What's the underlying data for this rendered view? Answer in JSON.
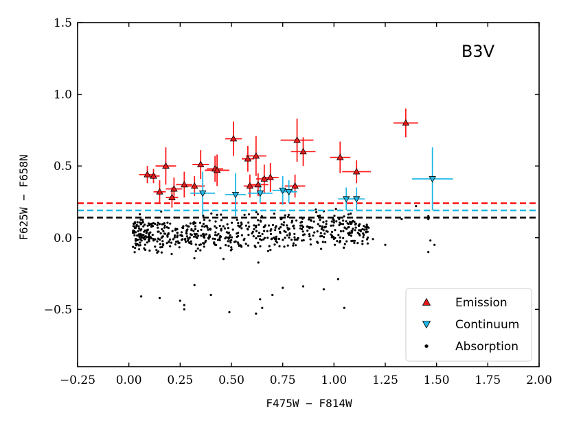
{
  "chart_data": {
    "type": "scatter",
    "title": "",
    "annotation": "B3V",
    "xlabel": "F475W − F814W",
    "ylabel": "F625W − F658N",
    "xlim": [
      -0.25,
      2.0
    ],
    "ylim": [
      -0.9,
      1.5
    ],
    "x_ticks": [
      -0.25,
      0.0,
      0.25,
      0.5,
      0.75,
      1.0,
      1.25,
      1.5,
      1.75,
      2.0
    ],
    "x_tick_labels": [
      "−0.25",
      "0.00",
      "0.25",
      "0.50",
      "0.75",
      "1.00",
      "1.25",
      "1.50",
      "1.75",
      "2.00"
    ],
    "y_ticks": [
      -0.5,
      0.0,
      0.5,
      1.0,
      1.5
    ],
    "y_tick_labels": [
      "−0.5",
      "0.0",
      "0.5",
      "1.0",
      "1.5"
    ],
    "grid": false,
    "legend_position": "lower-right",
    "thresholds": [
      {
        "name": "emission-threshold",
        "y": 0.24,
        "color": "#ff1a1a",
        "style": "dashed"
      },
      {
        "name": "continuum-threshold",
        "y": 0.19,
        "color": "#1fb7e6",
        "style": "dashed"
      },
      {
        "name": "absorption-threshold",
        "y": 0.14,
        "color": "#000000",
        "style": "dashed"
      }
    ],
    "series": [
      {
        "name": "Emission",
        "marker": "triangle-up",
        "color": "#e41a1c",
        "errcolor": "#ff1a1a",
        "points": [
          {
            "x": 0.09,
            "y": 0.44,
            "ex": 0.04,
            "ey": 0.06
          },
          {
            "x": 0.12,
            "y": 0.43,
            "ex": 0.03,
            "ey": 0.05
          },
          {
            "x": 0.18,
            "y": 0.5,
            "ex": 0.05,
            "ey": 0.13
          },
          {
            "x": 0.15,
            "y": 0.32,
            "ex": 0.03,
            "ey": 0.08
          },
          {
            "x": 0.21,
            "y": 0.28,
            "ex": 0.03,
            "ey": 0.07
          },
          {
            "x": 0.22,
            "y": 0.34,
            "ex": 0.04,
            "ey": 0.08
          },
          {
            "x": 0.27,
            "y": 0.37,
            "ex": 0.04,
            "ey": 0.09
          },
          {
            "x": 0.32,
            "y": 0.36,
            "ex": 0.05,
            "ey": 0.07
          },
          {
            "x": 0.35,
            "y": 0.51,
            "ex": 0.04,
            "ey": 0.1
          },
          {
            "x": 0.42,
            "y": 0.48,
            "ex": 0.04,
            "ey": 0.09
          },
          {
            "x": 0.43,
            "y": 0.47,
            "ex": 0.06,
            "ey": 0.11
          },
          {
            "x": 0.51,
            "y": 0.69,
            "ex": 0.04,
            "ey": 0.12
          },
          {
            "x": 0.58,
            "y": 0.55,
            "ex": 0.03,
            "ey": 0.09
          },
          {
            "x": 0.59,
            "y": 0.36,
            "ex": 0.03,
            "ey": 0.08
          },
          {
            "x": 0.62,
            "y": 0.57,
            "ex": 0.05,
            "ey": 0.14
          },
          {
            "x": 0.63,
            "y": 0.37,
            "ex": 0.05,
            "ey": 0.08
          },
          {
            "x": 0.66,
            "y": 0.41,
            "ex": 0.04,
            "ey": 0.1
          },
          {
            "x": 0.69,
            "y": 0.42,
            "ex": 0.04,
            "ey": 0.1
          },
          {
            "x": 0.82,
            "y": 0.68,
            "ex": 0.08,
            "ey": 0.15
          },
          {
            "x": 0.81,
            "y": 0.36,
            "ex": 0.05,
            "ey": 0.08
          },
          {
            "x": 0.85,
            "y": 0.6,
            "ex": 0.06,
            "ey": 0.1
          },
          {
            "x": 1.03,
            "y": 0.56,
            "ex": 0.05,
            "ey": 0.11
          },
          {
            "x": 1.11,
            "y": 0.46,
            "ex": 0.07,
            "ey": 0.08
          },
          {
            "x": 1.35,
            "y": 0.8,
            "ex": 0.06,
            "ey": 0.1
          }
        ]
      },
      {
        "name": "Continuum",
        "marker": "triangle-down",
        "color": "#1fb7e6",
        "errcolor": "#1fb7e6",
        "points": [
          {
            "x": 0.36,
            "y": 0.31,
            "ex": 0.06,
            "ey": 0.15
          },
          {
            "x": 0.52,
            "y": 0.3,
            "ex": 0.05,
            "ey": 0.15
          },
          {
            "x": 0.64,
            "y": 0.31,
            "ex": 0.06,
            "ey": 0.07
          },
          {
            "x": 0.75,
            "y": 0.33,
            "ex": 0.05,
            "ey": 0.1
          },
          {
            "x": 0.78,
            "y": 0.32,
            "ex": 0.04,
            "ey": 0.08
          },
          {
            "x": 1.06,
            "y": 0.27,
            "ex": 0.04,
            "ey": 0.08
          },
          {
            "x": 1.11,
            "y": 0.27,
            "ex": 0.04,
            "ey": 0.08
          },
          {
            "x": 1.48,
            "y": 0.41,
            "ex": 0.1,
            "ey": 0.22
          }
        ]
      },
      {
        "name": "Absorption",
        "marker": "dot",
        "color": "#000000",
        "generated_count": 620,
        "points": [
          {
            "x": 0.06,
            "y": -0.41
          },
          {
            "x": 0.15,
            "y": -0.42
          },
          {
            "x": 0.25,
            "y": -0.44
          },
          {
            "x": 0.27,
            "y": -0.47
          },
          {
            "x": 0.27,
            "y": -0.5
          },
          {
            "x": 0.49,
            "y": -0.52
          },
          {
            "x": 0.62,
            "y": -0.53
          },
          {
            "x": 0.65,
            "y": -0.49
          },
          {
            "x": 0.64,
            "y": -0.43
          },
          {
            "x": 0.85,
            "y": -0.34
          },
          {
            "x": 0.95,
            "y": -0.36
          },
          {
            "x": 1.02,
            "y": -0.29
          },
          {
            "x": 1.05,
            "y": -0.49
          },
          {
            "x": 1.19,
            "y": -0.01
          },
          {
            "x": 1.25,
            "y": -0.05
          },
          {
            "x": 1.47,
            "y": -0.02
          },
          {
            "x": 1.49,
            "y": -0.05
          },
          {
            "x": 1.46,
            "y": -0.1
          },
          {
            "x": 1.46,
            "y": 0.13
          },
          {
            "x": 1.4,
            "y": 0.22
          },
          {
            "x": 1.33,
            "y": 0.13
          },
          {
            "x": 1.46,
            "y": 0.15
          },
          {
            "x": 1.16,
            "y": 0.09
          },
          {
            "x": 0.4,
            "y": -0.4
          },
          {
            "x": 0.32,
            "y": -0.33
          },
          {
            "x": 0.75,
            "y": -0.35
          },
          {
            "x": 0.7,
            "y": -0.4
          }
        ]
      }
    ]
  }
}
